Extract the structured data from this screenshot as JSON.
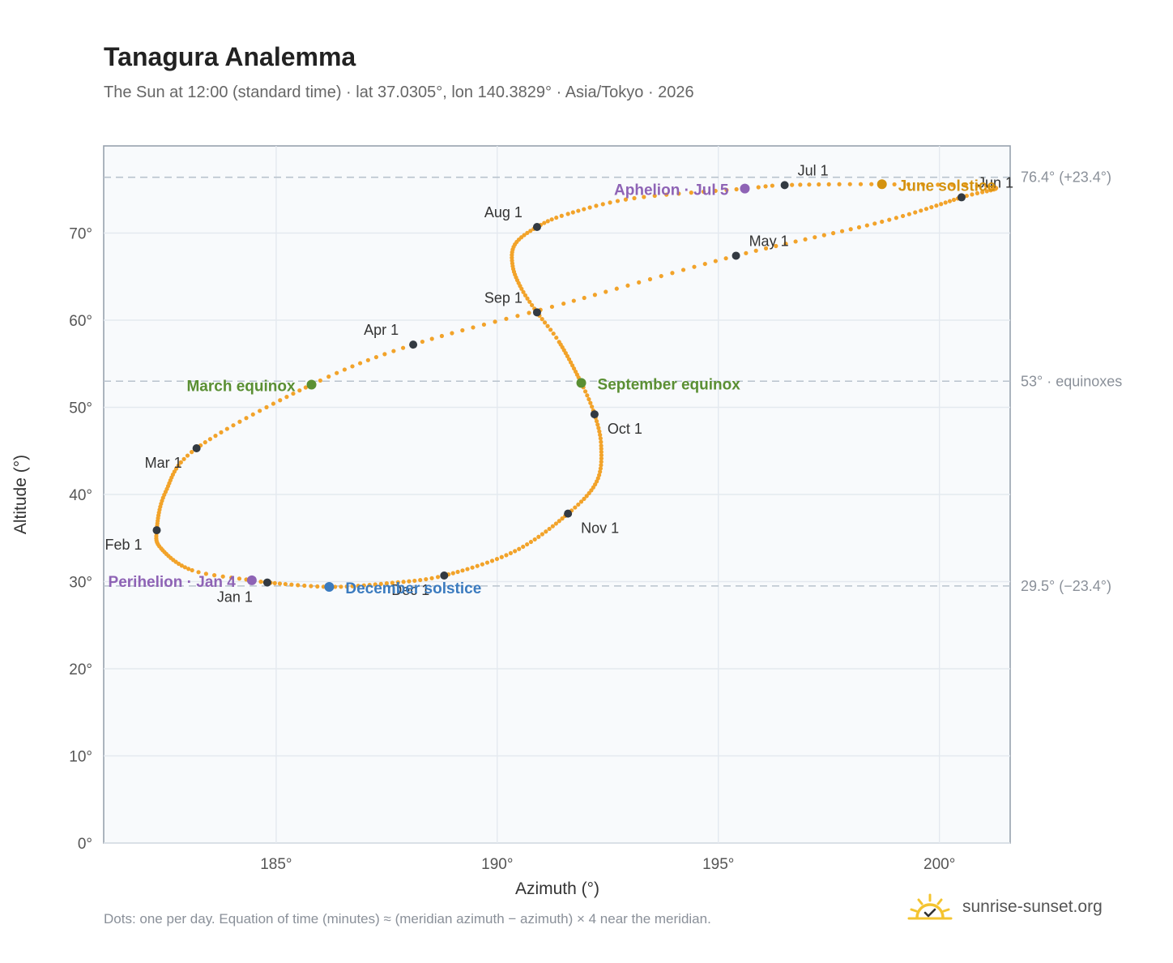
{
  "header": {
    "title": "Tanagura Analemma",
    "subtitle": "The Sun at 12:00 (standard time) · lat 37.0305°, lon 140.3829° · Asia/Tokyo · 2026"
  },
  "footer": {
    "note": "Dots: one per day. Equation of time (minutes) ≈ (meridian azimuth − azimuth) × 4 near the meridian.",
    "brand": "sunrise-sunset.org",
    "brand_icon": "sun-logo-icon"
  },
  "chart_data": {
    "type": "scatter",
    "xlabel": "Azimuth (°)",
    "ylabel": "Altitude (°)",
    "xlim": [
      181.1,
      201.6
    ],
    "ylim": [
      0,
      80
    ],
    "xticks": [
      185,
      190,
      195,
      200
    ],
    "yticks": [
      0,
      10,
      20,
      30,
      40,
      50,
      60,
      70
    ],
    "grid": true,
    "colors": {
      "path": "#f2a32a",
      "month_marker": "#333a42",
      "equinox": "#5a8f33",
      "june_solstice": "#d4920f",
      "december_solstice": "#3b7bbf",
      "apsis": "#8e63b5",
      "reference_line": "#b9c3cd"
    },
    "anchors": [
      {
        "day": 1,
        "az": 184.8,
        "alt": 29.9
      },
      {
        "day": 4,
        "az": 184.45,
        "alt": 30.15
      },
      {
        "day": 12,
        "az": 183.1,
        "alt": 31.3
      },
      {
        "day": 24,
        "az": 182.4,
        "alt": 33.8
      },
      {
        "day": 32,
        "az": 182.3,
        "alt": 35.9
      },
      {
        "day": 46,
        "az": 182.5,
        "alt": 40.3
      },
      {
        "day": 60,
        "az": 183.2,
        "alt": 45.3
      },
      {
        "day": 79,
        "az": 185.8,
        "alt": 52.6
      },
      {
        "day": 91,
        "az": 188.1,
        "alt": 57.2
      },
      {
        "day": 105,
        "az": 191.5,
        "alt": 61.9
      },
      {
        "day": 121,
        "az": 195.4,
        "alt": 67.4
      },
      {
        "day": 137,
        "az": 198.7,
        "alt": 71.3
      },
      {
        "day": 152,
        "az": 200.5,
        "alt": 74.1
      },
      {
        "day": 163,
        "az": 201.2,
        "alt": 75.3
      },
      {
        "day": 172,
        "az": 198.7,
        "alt": 75.6
      },
      {
        "day": 182,
        "az": 196.5,
        "alt": 75.5
      },
      {
        "day": 186,
        "az": 195.6,
        "alt": 75.1
      },
      {
        "day": 196,
        "az": 193.1,
        "alt": 74.0
      },
      {
        "day": 206,
        "az": 191.6,
        "alt": 72.2
      },
      {
        "day": 213,
        "az": 190.9,
        "alt": 70.7
      },
      {
        "day": 221,
        "az": 190.4,
        "alt": 68.7
      },
      {
        "day": 229,
        "az": 190.35,
        "alt": 66.2
      },
      {
        "day": 237,
        "az": 190.55,
        "alt": 63.6
      },
      {
        "day": 244,
        "az": 190.9,
        "alt": 60.9
      },
      {
        "day": 252,
        "az": 191.4,
        "alt": 57.5
      },
      {
        "day": 266,
        "az": 191.9,
        "alt": 52.8
      },
      {
        "day": 274,
        "az": 192.2,
        "alt": 49.2
      },
      {
        "day": 283,
        "az": 192.35,
        "alt": 45.6
      },
      {
        "day": 294,
        "az": 192.25,
        "alt": 41.5
      },
      {
        "day": 305,
        "az": 191.6,
        "alt": 37.8
      },
      {
        "day": 320,
        "az": 190.4,
        "alt": 33.5
      },
      {
        "day": 335,
        "az": 188.8,
        "alt": 30.7
      },
      {
        "day": 345,
        "az": 187.5,
        "alt": 29.8
      },
      {
        "day": 355,
        "az": 186.2,
        "alt": 29.4
      },
      {
        "day": 366,
        "az": 184.8,
        "alt": 29.9
      }
    ],
    "months": [
      {
        "label": "Jan 1",
        "az": 184.8,
        "alt": 29.9,
        "dx": -18,
        "dy": 24,
        "anchor": "end"
      },
      {
        "label": "Feb 1",
        "az": 182.3,
        "alt": 35.9,
        "dx": -18,
        "dy": 24,
        "anchor": "end"
      },
      {
        "label": "Mar 1",
        "az": 183.2,
        "alt": 45.3,
        "dx": -18,
        "dy": 24,
        "anchor": "end"
      },
      {
        "label": "Apr 1",
        "az": 188.1,
        "alt": 57.2,
        "dx": -18,
        "dy": -12,
        "anchor": "end"
      },
      {
        "label": "May 1",
        "az": 195.4,
        "alt": 67.4,
        "dx": 16,
        "dy": -12,
        "anchor": "start"
      },
      {
        "label": "Jun 1",
        "az": 200.5,
        "alt": 74.1,
        "dx": 20,
        "dy": -12,
        "anchor": "start"
      },
      {
        "label": "Jul 1",
        "az": 196.5,
        "alt": 75.5,
        "dx": 16,
        "dy": -12,
        "anchor": "start"
      },
      {
        "label": "Aug 1",
        "az": 190.9,
        "alt": 70.7,
        "dx": -18,
        "dy": -12,
        "anchor": "end"
      },
      {
        "label": "Sep 1",
        "az": 190.9,
        "alt": 60.9,
        "dx": -18,
        "dy": -12,
        "anchor": "end"
      },
      {
        "label": "Oct 1",
        "az": 192.2,
        "alt": 49.2,
        "dx": 16,
        "dy": 24,
        "anchor": "start"
      },
      {
        "label": "Nov 1",
        "az": 191.6,
        "alt": 37.8,
        "dx": 16,
        "dy": 24,
        "anchor": "start"
      },
      {
        "label": "Dec 1",
        "az": 188.8,
        "alt": 30.7,
        "dx": -18,
        "dy": 24,
        "anchor": "end"
      }
    ],
    "events": [
      {
        "label": "March equinox",
        "az": 185.8,
        "alt": 52.6,
        "kind": "equinox",
        "dx": -20,
        "dy": 8,
        "anchor": "end"
      },
      {
        "label": "September equinox",
        "az": 191.9,
        "alt": 52.8,
        "kind": "equinox",
        "dx": 20,
        "dy": 8,
        "anchor": "start"
      },
      {
        "label": "June solstice",
        "az": 198.7,
        "alt": 75.6,
        "kind": "june_solstice",
        "dx": 20,
        "dy": 8,
        "anchor": "start"
      },
      {
        "label": "December solstice",
        "az": 186.2,
        "alt": 29.4,
        "kind": "december_solstice",
        "dx": 20,
        "dy": 8,
        "anchor": "start"
      },
      {
        "label": "Aphelion · Jul 5",
        "az": 195.6,
        "alt": 75.1,
        "kind": "apsis",
        "dx": -20,
        "dy": 8,
        "anchor": "end"
      },
      {
        "label": "Perihelion · Jan 4",
        "az": 184.45,
        "alt": 30.15,
        "kind": "apsis",
        "dx": -20,
        "dy": 8,
        "anchor": "end"
      }
    ],
    "reference_lines": [
      {
        "alt": 76.4,
        "label": "76.4° (+23.4°)"
      },
      {
        "alt": 53.0,
        "label": "53° · equinoxes"
      },
      {
        "alt": 29.5,
        "label": "29.5° (−23.4°)"
      }
    ]
  }
}
